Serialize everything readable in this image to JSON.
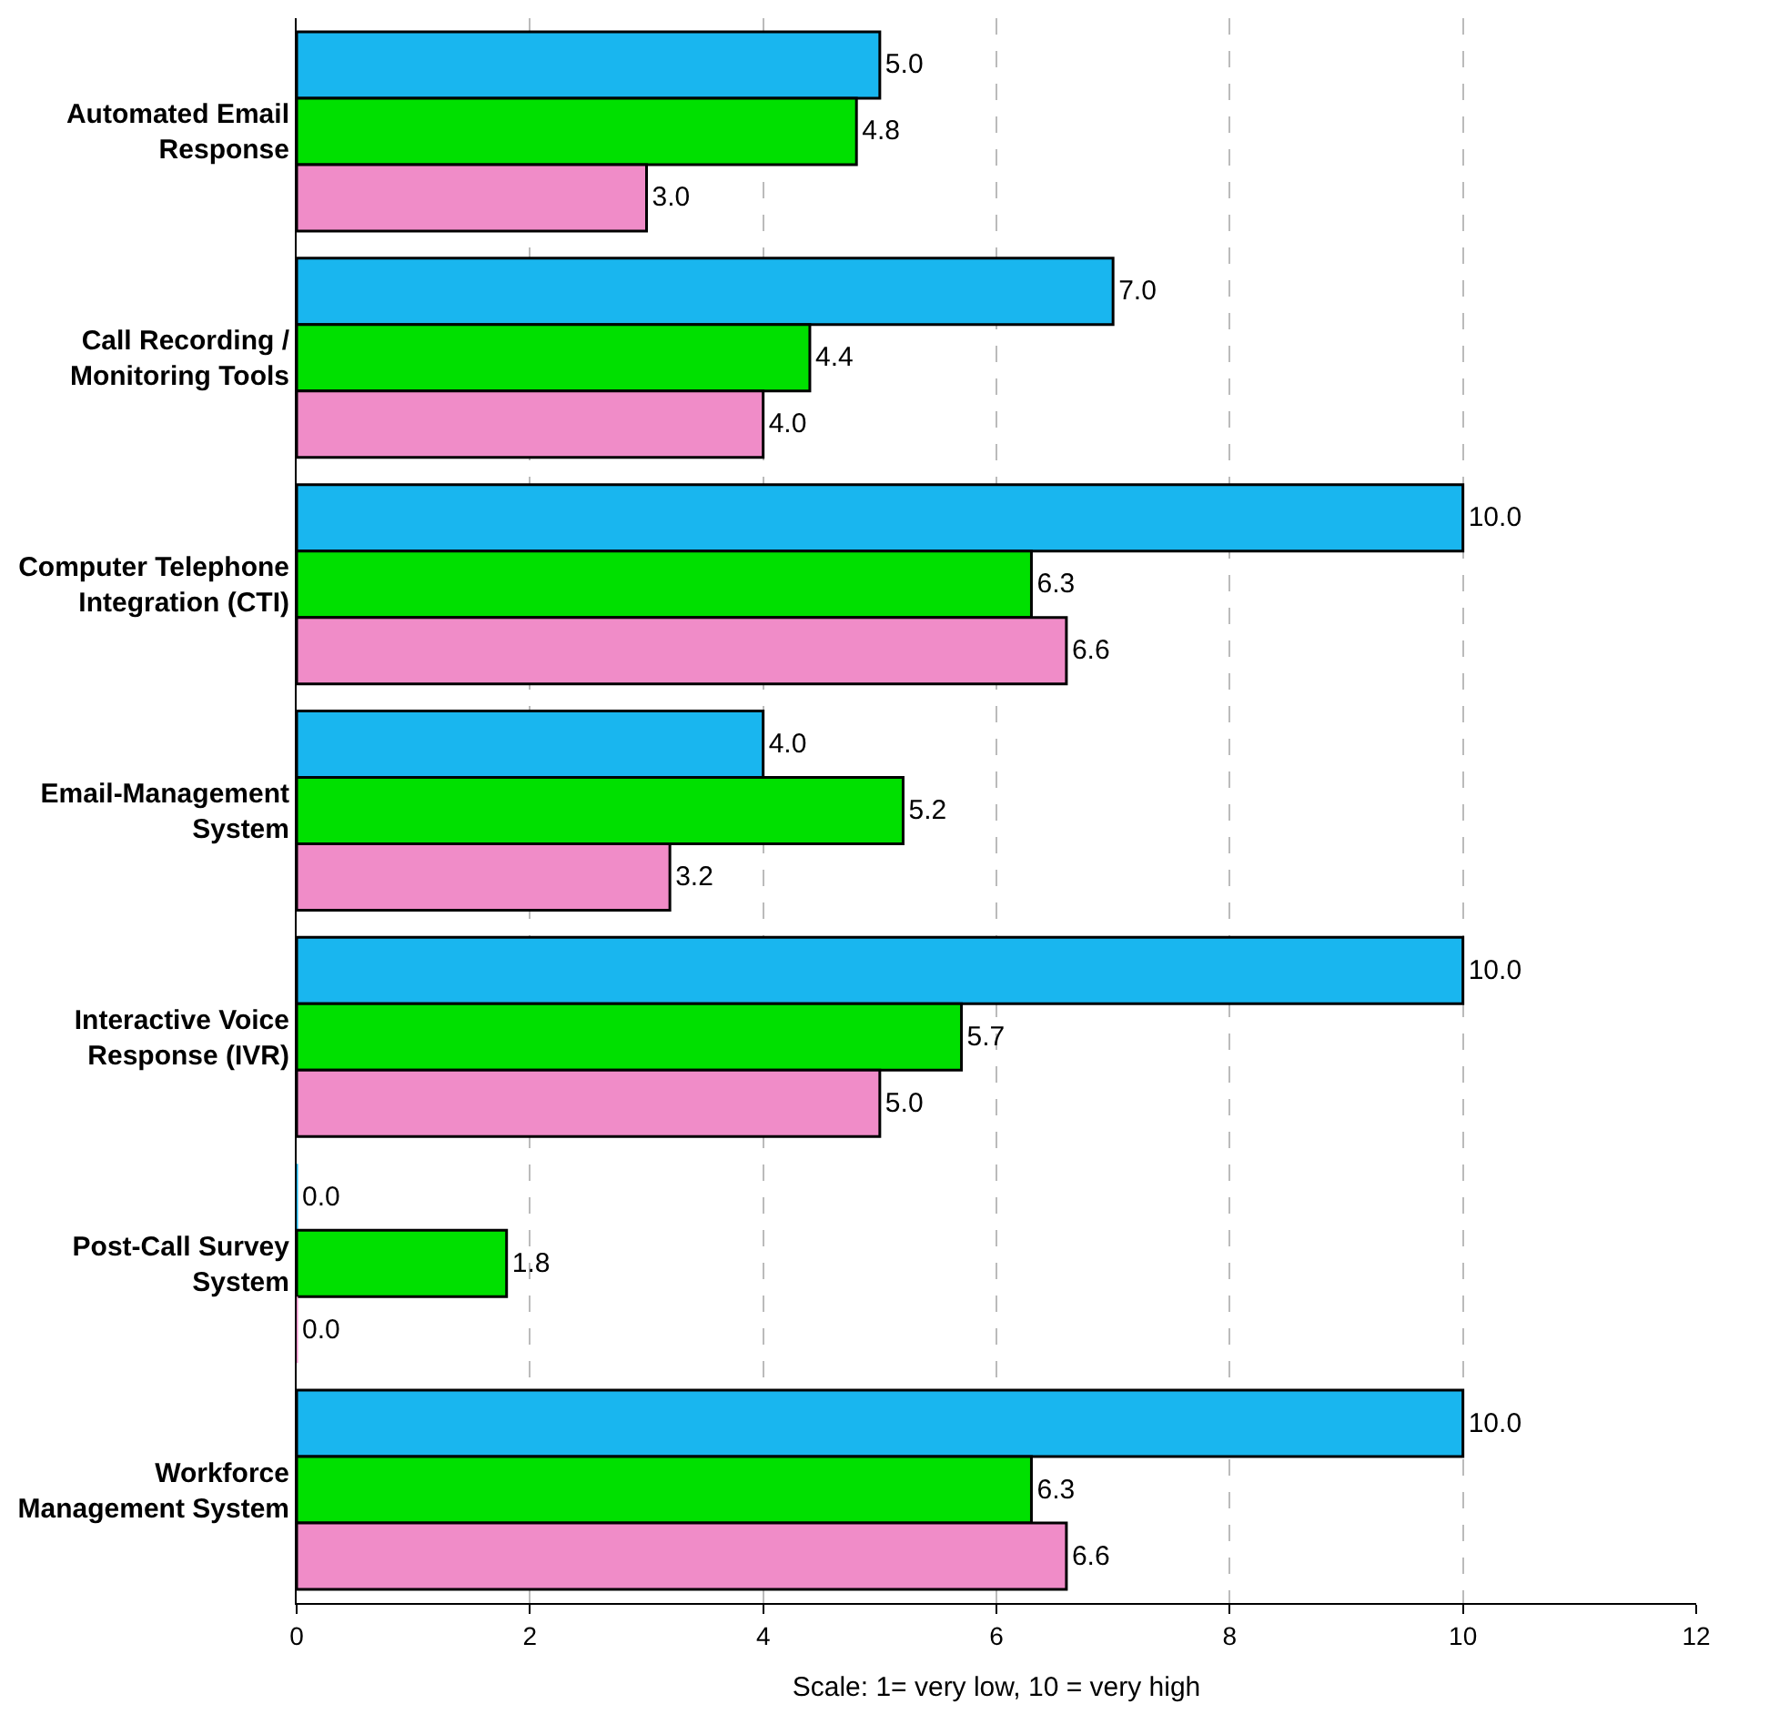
{
  "chart_data": {
    "type": "bar",
    "orientation": "horizontal",
    "xlabel": "Scale: 1= very low, 10 = very high",
    "categories": [
      "Automated Email Response",
      "Call Recording / Monitoring Tools",
      "Computer Telephone Integration (CTI)",
      "Email-Management System",
      "Interactive Voice Response (IVR)",
      "Post-Call Survey System",
      "Workforce Management System"
    ],
    "series": [
      {
        "color": "#19b6ef",
        "values": [
          5.0,
          7.0,
          10.0,
          4.0,
          10.0,
          0.0,
          10.0
        ],
        "value_labels": [
          "5.0",
          "7.0",
          "10.0",
          "4.0",
          "10.0",
          "0.0",
          "10.0"
        ]
      },
      {
        "color": "#00e000",
        "values": [
          4.8,
          4.4,
          6.3,
          5.2,
          5.7,
          1.8,
          6.3
        ],
        "value_labels": [
          "4.8",
          "4.4",
          "6.3",
          "5.2",
          "5.7",
          "1.8",
          "6.3"
        ]
      },
      {
        "color": "#f08cc8",
        "values": [
          3.0,
          4.0,
          6.6,
          3.2,
          5.0,
          0.0,
          6.6
        ],
        "value_labels": [
          "3.0",
          "4.0",
          "6.6",
          "3.2",
          "5.0",
          "0.0",
          "6.6"
        ]
      }
    ],
    "xlim": [
      0,
      12
    ],
    "xticks": [
      0,
      2,
      4,
      6,
      8,
      10,
      12
    ],
    "grid": "x"
  }
}
